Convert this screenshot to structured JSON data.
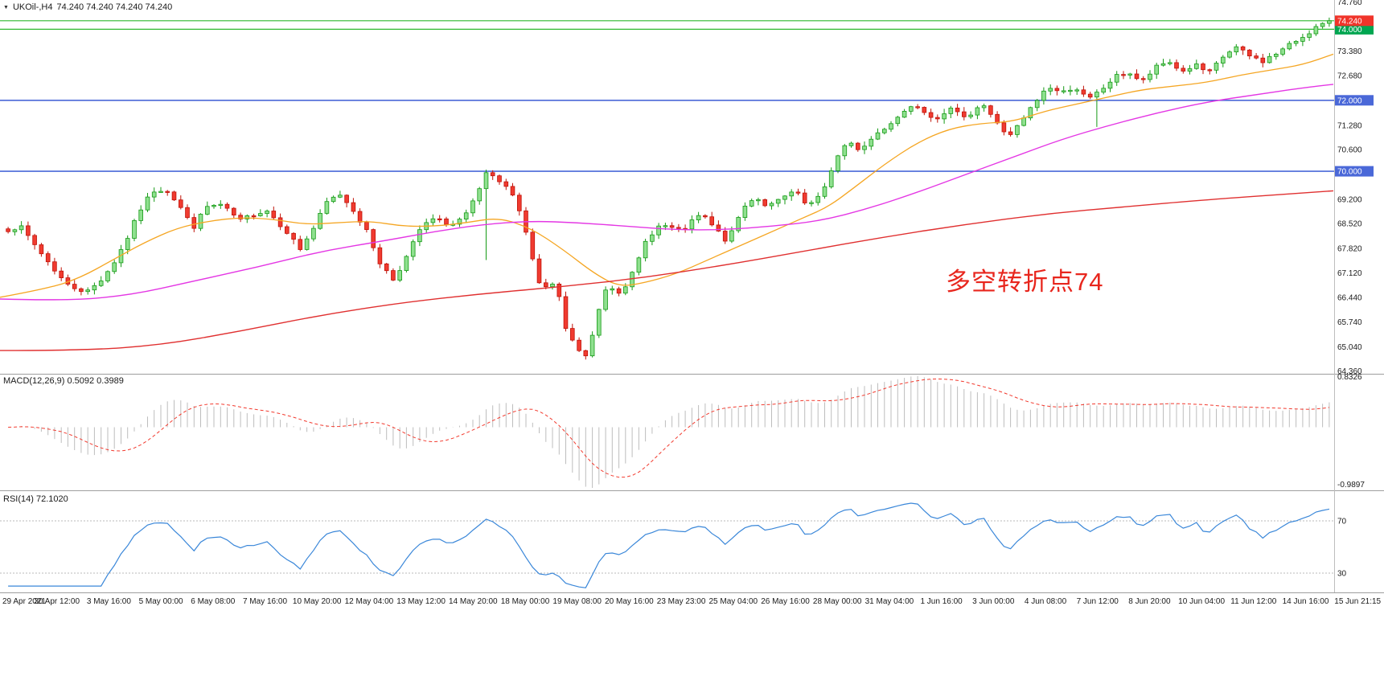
{
  "header": {
    "symbol": "UKOil-,H4",
    "ohlc": "74.240 74.240 74.240 74.240"
  },
  "indicators": {
    "macd_name": "MACD(12,26,9)",
    "macd_values": "0.5092 0.3989",
    "rsi_name": "RSI(14)",
    "rsi_value": "72.1020"
  },
  "annotation": {
    "text": "多空转折点74",
    "color": "#e8261d"
  },
  "colors": {
    "candle_up": {
      "fill": "#8fe08f",
      "stroke": "#159a15"
    },
    "candle_down": {
      "fill": "#f03b30",
      "stroke": "#c01208"
    },
    "ma_fast": "#f5a623",
    "ma_mid": "#e437e4",
    "ma_slow": "#e03030",
    "macd_hist": "#bdbdbd",
    "macd_signal": "#f23a2e",
    "rsi_line": "#3a87d9"
  },
  "chart_data": {
    "type": "candlestick",
    "symbol": "UKOil-",
    "timeframe": "H4",
    "current_price": 74.24,
    "n_candles": 200,
    "price_axis_labels": [
      74.76,
      73.38,
      72.68,
      71.28,
      70.6,
      69.2,
      68.52,
      67.82,
      67.12,
      66.44,
      65.74,
      65.04,
      64.36
    ],
    "price_badges": [
      {
        "value": "74.000",
        "price": 74.0,
        "color": "#00a651"
      },
      {
        "value": "72.000",
        "price": 72.0,
        "color": "#4a68d8"
      },
      {
        "value": "70.000",
        "price": 70.0,
        "color": "#4a68d8"
      },
      {
        "value": "74.240",
        "price": 74.24,
        "color": "#f0342a"
      }
    ],
    "hlines": [
      {
        "price": 74.24,
        "color": "#2db82d",
        "width": 1.2
      },
      {
        "price": 74.0,
        "color": "#2db82d",
        "width": 1.2
      },
      {
        "price": 72.0,
        "color": "#4a68d8",
        "width": 1.6
      },
      {
        "price": 70.0,
        "color": "#4a68d8",
        "width": 1.6
      }
    ],
    "candles_waypoints": [
      [
        0,
        68.3
      ],
      [
        25,
        68.45
      ],
      [
        58,
        67.5
      ],
      [
        83,
        66.8
      ],
      [
        108,
        66.6
      ],
      [
        124,
        66.9
      ],
      [
        141,
        67.4
      ],
      [
        158,
        68.1
      ],
      [
        174,
        68.9
      ],
      [
        190,
        69.45
      ],
      [
        207,
        69.5
      ],
      [
        224,
        69.0
      ],
      [
        240,
        68.4
      ],
      [
        257,
        69.0
      ],
      [
        274,
        69.05
      ],
      [
        299,
        68.6
      ],
      [
        315,
        68.8
      ],
      [
        332,
        68.9
      ],
      [
        357,
        68.3
      ],
      [
        373,
        67.8
      ],
      [
        390,
        68.4
      ],
      [
        407,
        69.15
      ],
      [
        423,
        69.35
      ],
      [
        440,
        68.9
      ],
      [
        456,
        68.3
      ],
      [
        473,
        67.4
      ],
      [
        489,
        66.95
      ],
      [
        506,
        67.6
      ],
      [
        523,
        68.4
      ],
      [
        539,
        68.65
      ],
      [
        564,
        68.5
      ],
      [
        581,
        68.8
      ],
      [
        597,
        69.5
      ],
      [
        607,
        70.1
      ],
      [
        615,
        69.7
      ],
      [
        631,
        69.55
      ],
      [
        647,
        68.9
      ],
      [
        664,
        67.4
      ],
      [
        672,
        66.7
      ],
      [
        689,
        66.8
      ],
      [
        697,
        66.3
      ],
      [
        705,
        65.4
      ],
      [
        722,
        64.9
      ],
      [
        730,
        64.75
      ],
      [
        747,
        66.3
      ],
      [
        755,
        66.8
      ],
      [
        772,
        66.6
      ],
      [
        789,
        67.2
      ],
      [
        805,
        68.15
      ],
      [
        822,
        68.5
      ],
      [
        847,
        68.3
      ],
      [
        872,
        68.8
      ],
      [
        888,
        68.4
      ],
      [
        905,
        68.0
      ],
      [
        922,
        68.9
      ],
      [
        938,
        69.3
      ],
      [
        955,
        69.0
      ],
      [
        971,
        69.2
      ],
      [
        988,
        69.45
      ],
      [
        1004,
        69.0
      ],
      [
        1021,
        69.3
      ],
      [
        1038,
        70.3
      ],
      [
        1054,
        70.8
      ],
      [
        1071,
        70.6
      ],
      [
        1087,
        71.0
      ],
      [
        1104,
        71.3
      ],
      [
        1120,
        71.6
      ],
      [
        1137,
        71.95
      ],
      [
        1154,
        71.6
      ],
      [
        1170,
        71.5
      ],
      [
        1187,
        71.8
      ],
      [
        1203,
        71.5
      ],
      [
        1220,
        71.9
      ],
      [
        1237,
        71.5
      ],
      [
        1253,
        70.9
      ],
      [
        1270,
        71.4
      ],
      [
        1286,
        71.9
      ],
      [
        1303,
        72.4
      ],
      [
        1320,
        72.2
      ],
      [
        1336,
        72.4
      ],
      [
        1353,
        72.0
      ],
      [
        1370,
        72.3
      ],
      [
        1386,
        72.65
      ],
      [
        1403,
        72.8
      ],
      [
        1420,
        72.5
      ],
      [
        1436,
        72.9
      ],
      [
        1453,
        73.1
      ],
      [
        1470,
        72.8
      ],
      [
        1486,
        73.0
      ],
      [
        1503,
        72.75
      ],
      [
        1520,
        73.2
      ],
      [
        1536,
        73.5
      ],
      [
        1553,
        73.25
      ],
      [
        1570,
        73.1
      ],
      [
        1586,
        73.3
      ],
      [
        1603,
        73.55
      ],
      [
        1620,
        73.8
      ],
      [
        1636,
        74.05
      ],
      [
        1655,
        74.24
      ]
    ],
    "wick_extensions": [
      [
        608,
        67.5
      ],
      [
        1362,
        71.25
      ]
    ],
    "ma_orange": [
      [
        0,
        66.45
      ],
      [
        60,
        66.7
      ],
      [
        100,
        67.0
      ],
      [
        140,
        67.5
      ],
      [
        180,
        68.0
      ],
      [
        220,
        68.4
      ],
      [
        260,
        68.6
      ],
      [
        300,
        68.7
      ],
      [
        340,
        68.65
      ],
      [
        380,
        68.5
      ],
      [
        420,
        68.55
      ],
      [
        460,
        68.6
      ],
      [
        500,
        68.45
      ],
      [
        540,
        68.45
      ],
      [
        580,
        68.55
      ],
      [
        620,
        68.7
      ],
      [
        660,
        68.4
      ],
      [
        700,
        67.8
      ],
      [
        740,
        67.1
      ],
      [
        770,
        66.75
      ],
      [
        800,
        66.85
      ],
      [
        840,
        67.1
      ],
      [
        880,
        67.5
      ],
      [
        920,
        67.9
      ],
      [
        960,
        68.3
      ],
      [
        1000,
        68.7
      ],
      [
        1030,
        69.0
      ],
      [
        1060,
        69.5
      ],
      [
        1100,
        70.2
      ],
      [
        1140,
        70.8
      ],
      [
        1180,
        71.2
      ],
      [
        1220,
        71.35
      ],
      [
        1260,
        71.4
      ],
      [
        1300,
        71.7
      ],
      [
        1340,
        71.9
      ],
      [
        1380,
        72.1
      ],
      [
        1420,
        72.3
      ],
      [
        1460,
        72.4
      ],
      [
        1500,
        72.5
      ],
      [
        1540,
        72.7
      ],
      [
        1580,
        72.85
      ],
      [
        1620,
        73.0
      ],
      [
        1658,
        73.3
      ]
    ],
    "ma_magenta": [
      [
        0,
        66.4
      ],
      [
        80,
        66.35
      ],
      [
        160,
        66.5
      ],
      [
        240,
        66.9
      ],
      [
        320,
        67.3
      ],
      [
        400,
        67.75
      ],
      [
        480,
        68.05
      ],
      [
        540,
        68.3
      ],
      [
        600,
        68.5
      ],
      [
        660,
        68.6
      ],
      [
        720,
        68.55
      ],
      [
        780,
        68.45
      ],
      [
        840,
        68.35
      ],
      [
        900,
        68.35
      ],
      [
        960,
        68.45
      ],
      [
        1020,
        68.6
      ],
      [
        1080,
        68.95
      ],
      [
        1140,
        69.4
      ],
      [
        1200,
        69.9
      ],
      [
        1260,
        70.4
      ],
      [
        1320,
        70.9
      ],
      [
        1380,
        71.3
      ],
      [
        1440,
        71.65
      ],
      [
        1500,
        71.95
      ],
      [
        1560,
        72.15
      ],
      [
        1620,
        72.35
      ],
      [
        1658,
        72.45
      ]
    ],
    "ma_red": [
      [
        0,
        64.95
      ],
      [
        100,
        64.95
      ],
      [
        200,
        65.1
      ],
      [
        300,
        65.5
      ],
      [
        400,
        65.95
      ],
      [
        500,
        66.3
      ],
      [
        600,
        66.55
      ],
      [
        700,
        66.75
      ],
      [
        800,
        67.0
      ],
      [
        900,
        67.35
      ],
      [
        1000,
        67.75
      ],
      [
        1100,
        68.15
      ],
      [
        1200,
        68.5
      ],
      [
        1300,
        68.8
      ],
      [
        1400,
        69.0
      ],
      [
        1500,
        69.2
      ],
      [
        1658,
        69.45
      ]
    ],
    "macd": {
      "label": "MACD(12,26,9)",
      "main_value": 0.5092,
      "signal_value": 0.3989,
      "axis_max": 0.8326,
      "axis_min": -0.9897,
      "axis_max_label": "0.8326",
      "axis_min_label": "-0.9897"
    },
    "rsi": {
      "label": "RSI(14)",
      "value": 72.102,
      "levels": [
        70,
        30
      ]
    },
    "time_labels": [
      "29 Apr 2021",
      "30 Apr 12:00",
      "3 May 16:00",
      "5 May 00:00",
      "6 May 08:00",
      "7 May 16:00",
      "10 May 20:00",
      "12 May 04:00",
      "13 May 12:00",
      "14 May 20:00",
      "18 May 00:00",
      "19 May 08:00",
      "20 May 16:00",
      "23 May 23:00",
      "25 May 04:00",
      "26 May 16:00",
      "28 May 00:00",
      "31 May 04:00",
      "1 Jun 16:00",
      "3 Jun 00:00",
      "4 Jun 08:00",
      "7 Jun 12:00",
      "8 Jun 20:00",
      "10 Jun 04:00",
      "11 Jun 12:00",
      "14 Jun 16:00",
      "15 Jun 21:15"
    ]
  }
}
